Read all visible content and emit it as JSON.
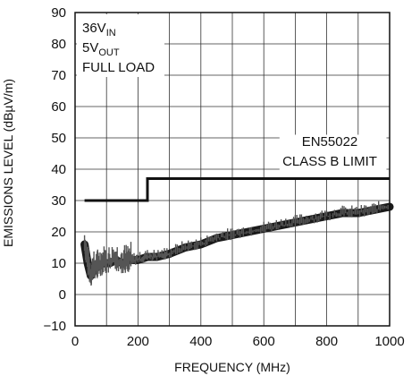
{
  "chart_data": {
    "type": "line",
    "xlabel": "FREQUENCY (MHz)",
    "ylabel": "EMISSIONS LEVEL (dBµV/m)",
    "xlim": [
      0,
      1000
    ],
    "ylim": [
      -10,
      90
    ],
    "x_ticks": [
      0,
      200,
      400,
      600,
      800,
      1000
    ],
    "y_ticks": [
      -10,
      0,
      10,
      20,
      30,
      40,
      50,
      60,
      70,
      80,
      90
    ],
    "x_tick_labels": [
      "0",
      "200",
      "400",
      "600",
      "800",
      "1000"
    ],
    "y_tick_labels": [
      "−10",
      "0",
      "10",
      "20",
      "30",
      "40",
      "50",
      "60",
      "70",
      "80",
      "90"
    ],
    "grid": true,
    "conditions": {
      "line1_main": "36V",
      "line1_sub": "IN",
      "line2_main": "5V",
      "line2_sub": "OUT",
      "line3": "FULL LOAD"
    },
    "limit_label": [
      "EN55022",
      "CLASS B LIMIT"
    ],
    "series": [
      {
        "name": "CLASS B LIMIT",
        "x": [
          30,
          230,
          230,
          1000
        ],
        "y": [
          30,
          30,
          37,
          37
        ]
      },
      {
        "name": "",
        "x": [
          30,
          40,
          50,
          60,
          75,
          90,
          110,
          130,
          150,
          175,
          200,
          230,
          260,
          300,
          350,
          400,
          450,
          500,
          550,
          600,
          650,
          700,
          750,
          800,
          850,
          900,
          950,
          1000
        ],
        "y": [
          16,
          10,
          6,
          8,
          9,
          10,
          10,
          11,
          10,
          11,
          11,
          12,
          12,
          13,
          15,
          16,
          18,
          19,
          20,
          21,
          22,
          23,
          24,
          25,
          26,
          26,
          27,
          28
        ]
      }
    ]
  }
}
